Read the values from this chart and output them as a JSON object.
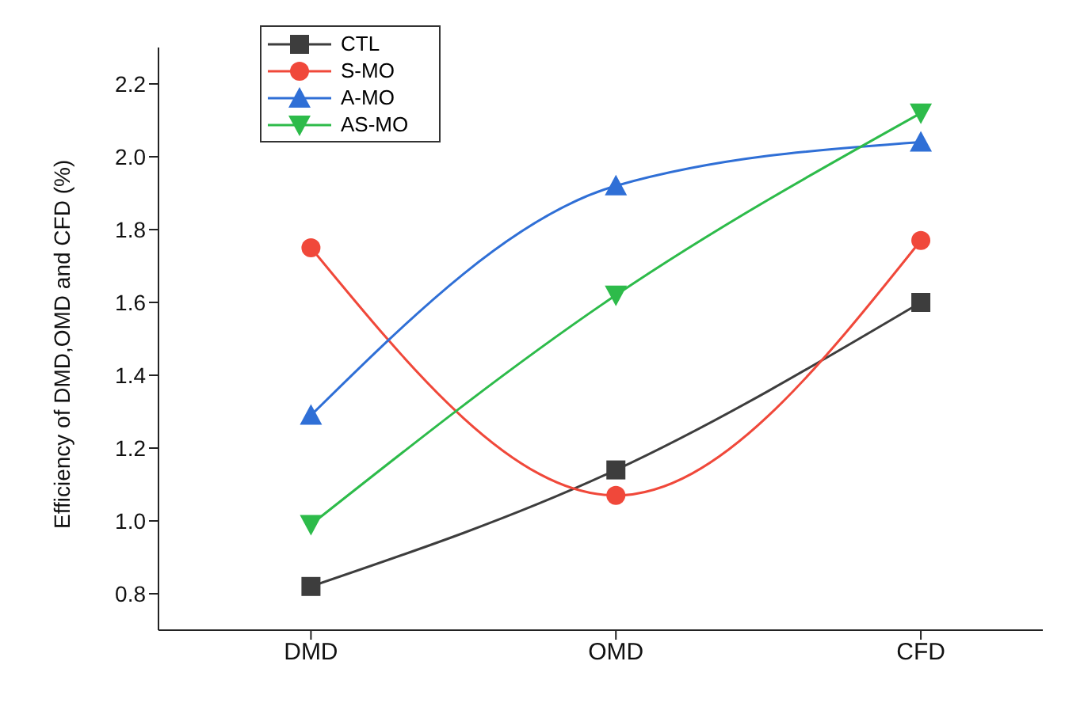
{
  "chart_data": {
    "type": "line",
    "ylabel": "Efficiency of DMD,OMD and CFD (%)",
    "categories": [
      "DMD",
      "OMD",
      "CFD"
    ],
    "series": [
      {
        "name": "CTL",
        "color": "#3d3d3d",
        "marker": "square",
        "values": [
          0.82,
          1.14,
          1.6
        ]
      },
      {
        "name": "S-MO",
        "color": "#f0483a",
        "marker": "circle",
        "values": [
          1.75,
          1.07,
          1.77
        ]
      },
      {
        "name": "A-MO",
        "color": "#2f6fd6",
        "marker": "triangle",
        "values": [
          1.29,
          1.92,
          2.04
        ]
      },
      {
        "name": "AS-MO",
        "color": "#2dbb4a",
        "marker": "triangle-down",
        "values": [
          0.99,
          1.62,
          2.12
        ]
      }
    ],
    "ylim": [
      0.7,
      2.3
    ],
    "yticks": [
      {
        "value": 0.8,
        "label": "0.8"
      },
      {
        "value": 1.0,
        "label": "1.0"
      },
      {
        "value": 1.2,
        "label": "1.2"
      },
      {
        "value": 1.4,
        "label": "1.4"
      },
      {
        "value": 1.6,
        "label": "1.6"
      },
      {
        "value": 1.8,
        "label": "1.8"
      },
      {
        "value": 2.0,
        "label": "2.0"
      },
      {
        "value": 2.2,
        "label": "2.2"
      }
    ],
    "grid": false,
    "legend": "top left",
    "line_style": "solid"
  }
}
